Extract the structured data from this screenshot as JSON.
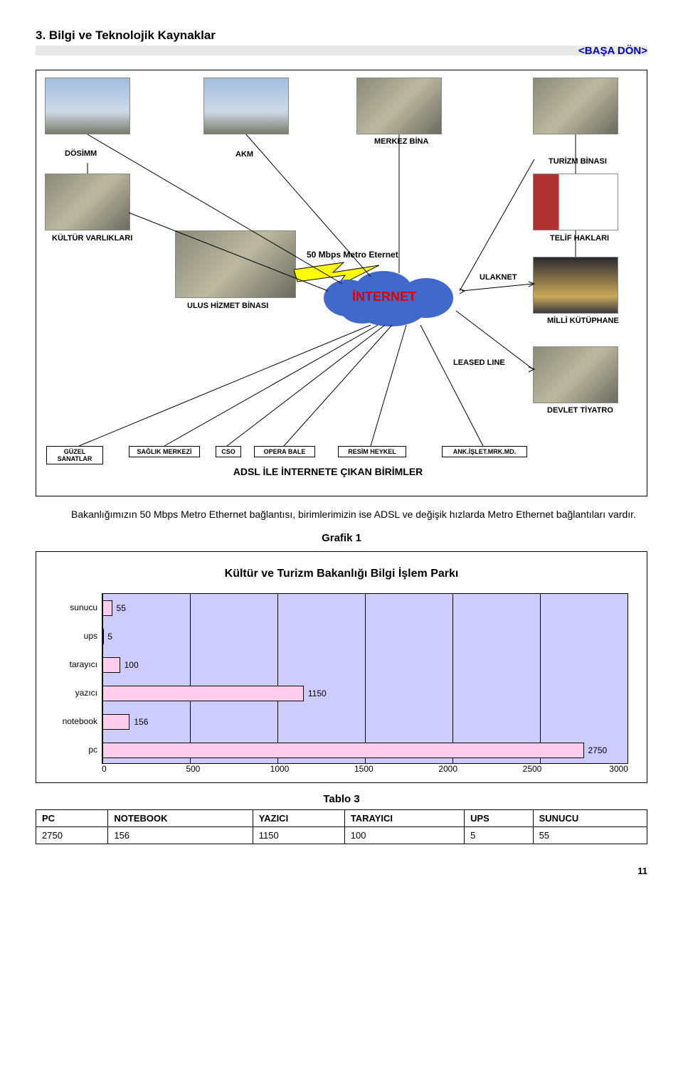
{
  "section": {
    "title": "3. Bilgi ve Teknolojik Kaynaklar",
    "back_link": "<BAŞA DÖN>"
  },
  "diagram": {
    "top_labels": {
      "dosimm": "DÖSİMM",
      "akm": "AKM",
      "merkez": "MERKEZ BİNA",
      "turizm": "TURİZM BİNASI"
    },
    "mid_labels": {
      "kultur": "KÜLTÜR VARLIKLARI",
      "telif": "TELİF HAKLARI",
      "mbps": "50 Mbps Metro Eternet",
      "ulus": "ULUS HİZMET BİNASI",
      "ulaknet": "ULAKNET",
      "milli": "MİLLİ KÜTÜPHANE",
      "leased": "LEASED LINE",
      "devlet": "DEVLET TİYATRO"
    },
    "internet": "İNTERNET",
    "bottom_boxes": [
      "GÜZEL SANATLAR",
      "SAĞLIK MERKEZİ",
      "CSO",
      "OPERA  BALE",
      "RESİM HEYKEL",
      "ANK.İŞLET.MRK.MD."
    ],
    "adsl_line": "ADSL İLE İNTERNETE ÇIKAN BİRİMLER"
  },
  "paragraph": "Bakanlığımızın 50 Mbps Metro Ethernet bağlantısı, birimlerimizin ise ADSL ve değişik hızlarda Metro Ethernet bağlantıları vardır.",
  "grafik": {
    "heading": "Grafik 1",
    "title": "Kültür ve Turizm Bakanlığı Bilgi İşlem Parkı",
    "categories": [
      "sunucu",
      "ups",
      "tarayıcı",
      "yazıcı",
      "notebook",
      "pc"
    ],
    "values": [
      55,
      5,
      100,
      1150,
      156,
      2750
    ],
    "xticks": [
      0,
      500,
      1000,
      1500,
      2000,
      2500,
      3000
    ],
    "plot_bg": "#ccccff",
    "bar_fill": "#ffccee",
    "bar_label_color": "#000000"
  },
  "tablo": {
    "heading": "Tablo 3",
    "columns": [
      "PC",
      "NOTEBOOK",
      "YAZICI",
      "TARAYICI",
      "UPS",
      "SUNUCU"
    ],
    "row": [
      "2750",
      "156",
      "1150",
      "100",
      "5",
      "55"
    ]
  },
  "page_number": "11"
}
